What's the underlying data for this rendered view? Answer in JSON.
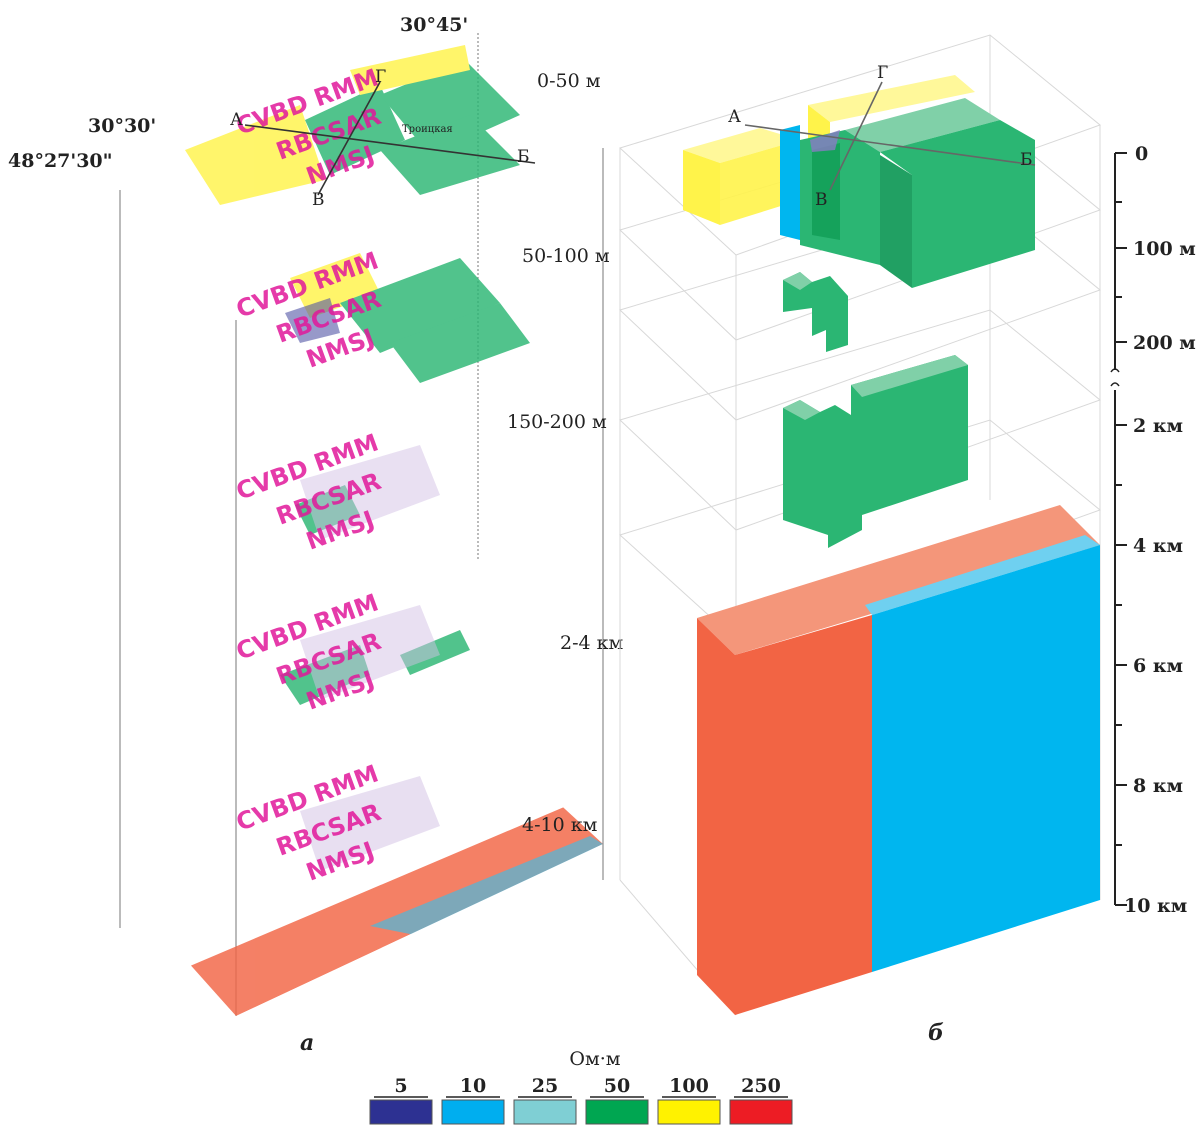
{
  "coords": {
    "lon_top": "30°45'",
    "lon_left": "30°30'",
    "lat_left": "48°27'30\""
  },
  "map_layers": [
    {
      "depth": "0-50 м"
    },
    {
      "depth": "50-100 м"
    },
    {
      "depth": "150-200 м"
    },
    {
      "depth": "2-4 км"
    },
    {
      "depth": "4-10 км"
    }
  ],
  "profile_points": {
    "a": "А",
    "b": "Б",
    "v": "В",
    "g": "Г"
  },
  "settlement": "Троицкая",
  "depth_axis": [
    {
      "label": "0"
    },
    {
      "label": "100 м"
    },
    {
      "label": "200 м"
    },
    {
      "label": "2 км"
    },
    {
      "label": "4 км"
    },
    {
      "label": "6 км"
    },
    {
      "label": "8 км"
    },
    {
      "label": "10 км"
    }
  ],
  "panel_labels": {
    "left": "а",
    "right": "б"
  },
  "legend": {
    "unit": "Ом·м",
    "items": [
      {
        "value": "5",
        "color": "#2d3192"
      },
      {
        "value": "10",
        "color": "#00aeef"
      },
      {
        "value": "25",
        "color": "#7fcfd4"
      },
      {
        "value": "50",
        "color": "#00a651"
      },
      {
        "value": "100",
        "color": "#fff200"
      },
      {
        "value": "250",
        "color": "#ed1c24"
      }
    ]
  },
  "colors": {
    "green": "#2bb673",
    "yellow": "#fff34a",
    "blue": "#00b6ef",
    "orange": "#f26444",
    "fault": "#ee1c24"
  }
}
